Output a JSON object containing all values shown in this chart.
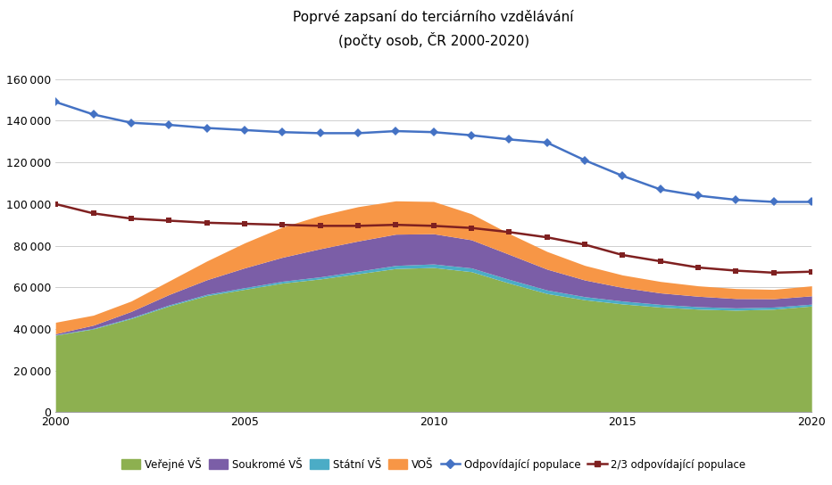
{
  "years": [
    2000,
    2001,
    2002,
    2003,
    2004,
    2005,
    2006,
    2007,
    2008,
    2009,
    2010,
    2011,
    2012,
    2013,
    2014,
    2015,
    2016,
    2017,
    2018,
    2019,
    2020
  ],
  "verejne_vs": [
    37000,
    40000,
    45000,
    51000,
    56000,
    59000,
    62000,
    64000,
    66500,
    69000,
    69500,
    67500,
    62000,
    57000,
    54000,
    52000,
    50500,
    49500,
    49000,
    49500,
    51000
  ],
  "statni_vs": [
    200,
    300,
    400,
    500,
    600,
    800,
    900,
    1000,
    1200,
    1500,
    1700,
    1800,
    1800,
    1700,
    1500,
    1400,
    1300,
    1200,
    1100,
    1000,
    900
  ],
  "soukrome_vs": [
    500,
    1500,
    3000,
    5000,
    7000,
    9500,
    11500,
    13500,
    14500,
    15000,
    14500,
    13500,
    12000,
    10000,
    8000,
    6500,
    5500,
    5000,
    4500,
    4000,
    4000
  ],
  "vos": [
    5500,
    4800,
    5000,
    6500,
    9000,
    12000,
    14500,
    16000,
    16500,
    16000,
    15500,
    12500,
    10000,
    8500,
    7000,
    6000,
    5500,
    5000,
    4800,
    4500,
    4800
  ],
  "odpovidajici_populace": [
    149000,
    143000,
    139000,
    138000,
    136500,
    135500,
    134500,
    134000,
    134000,
    135000,
    134500,
    133000,
    131000,
    129500,
    121000,
    113500,
    107000,
    104000,
    102000,
    101000,
    101000
  ],
  "dva_tretiny_populace": [
    100000,
    95500,
    93000,
    92000,
    91000,
    90500,
    90000,
    89500,
    89500,
    90000,
    89500,
    88500,
    86500,
    84000,
    80500,
    75500,
    72500,
    69500,
    68000,
    67000,
    67500
  ],
  "title": "Poprvé zapsaní do terciárního vzdělávání",
  "subtitle": "(počty osob, ČR 2000-2020)",
  "color_verejne": "#8db050",
  "color_soukrome": "#7b5ea7",
  "color_statni": "#4bacc6",
  "color_vos": "#f79646",
  "color_odpovidajici": "#4472c4",
  "color_dva_tretiny": "#7f2020",
  "ylim": [
    0,
    170000
  ],
  "yticks": [
    0,
    20000,
    40000,
    60000,
    80000,
    100000,
    120000,
    140000,
    160000
  ],
  "legend_labels": [
    "Veřejné VŠ",
    "Soukromé VŠ",
    "Státní VŠ",
    "VOŠ",
    "Odpovídající populace",
    "2/3 odpovídající populace"
  ]
}
